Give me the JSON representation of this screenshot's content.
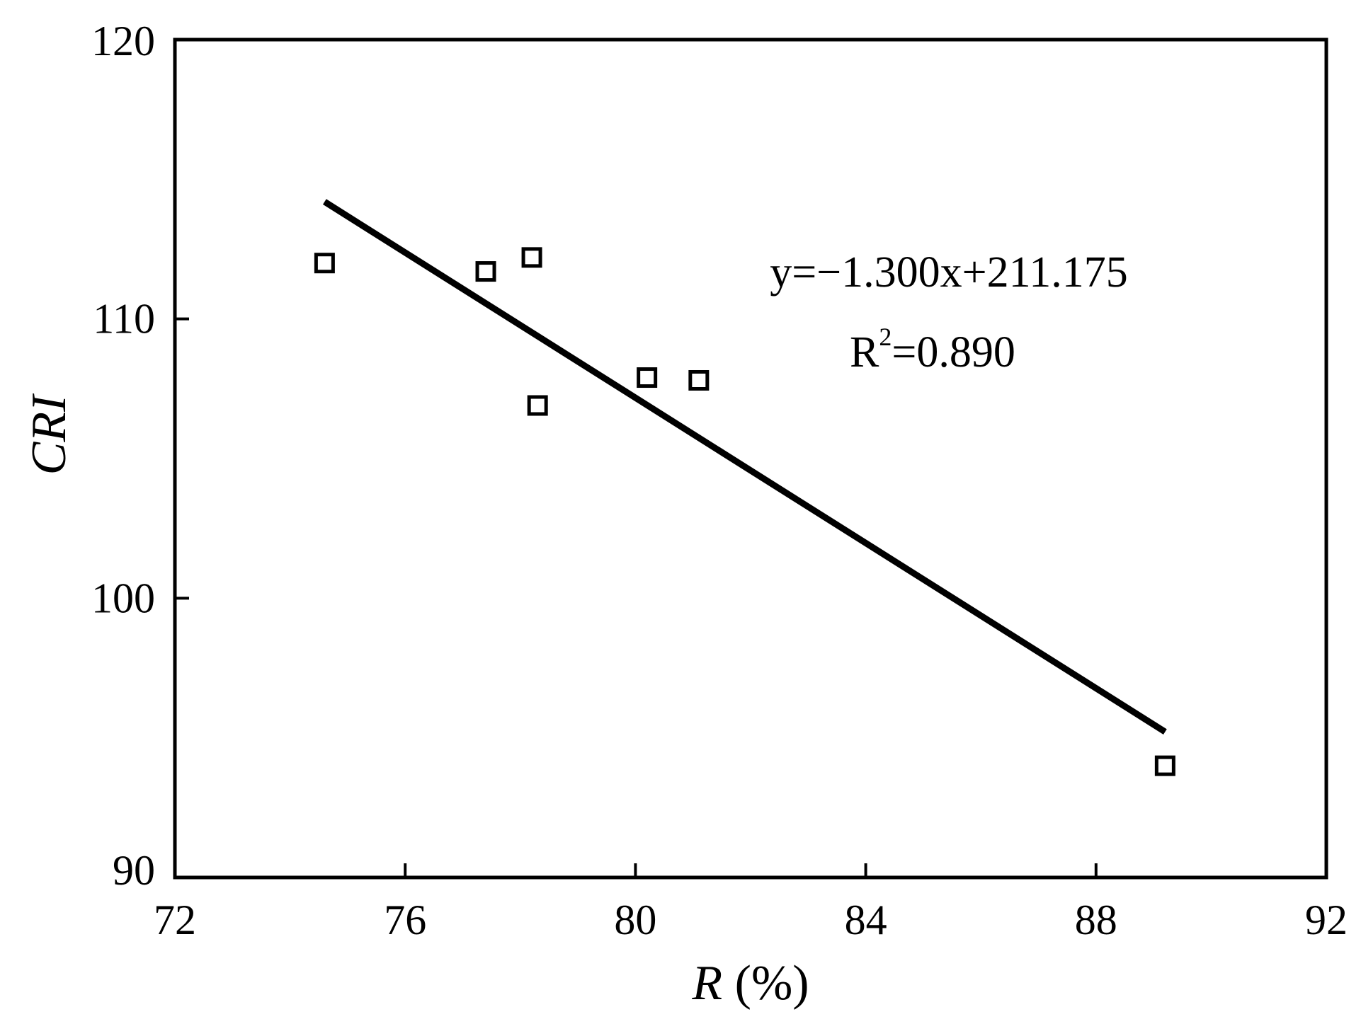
{
  "chart_data": {
    "type": "scatter",
    "title": "",
    "xlabel_main": "R",
    "xlabel_unit": " (%)",
    "ylabel": "CRI",
    "xlim": [
      72,
      92
    ],
    "ylim": [
      90,
      120
    ],
    "xticks": [
      72,
      76,
      80,
      84,
      88,
      92
    ],
    "yticks": [
      90,
      100,
      110,
      120
    ],
    "grid": false,
    "legend": "none",
    "series": [
      {
        "marker": "open-square",
        "points": [
          {
            "x": 74.6,
            "y": 112.0
          },
          {
            "x": 77.4,
            "y": 111.7
          },
          {
            "x": 78.2,
            "y": 112.2
          },
          {
            "x": 78.3,
            "y": 106.9
          },
          {
            "x": 80.2,
            "y": 107.9
          },
          {
            "x": 81.1,
            "y": 107.8
          },
          {
            "x": 89.2,
            "y": 94.0
          }
        ]
      }
    ],
    "fit_line": {
      "slope": -1.3,
      "intercept": 211.175,
      "x_range": [
        74.6,
        89.2
      ]
    },
    "annotations": {
      "equation": "y=−1.300x+211.175",
      "r2_prefix": "R",
      "r2_sup": "2",
      "r2_value": "=0.890"
    }
  }
}
